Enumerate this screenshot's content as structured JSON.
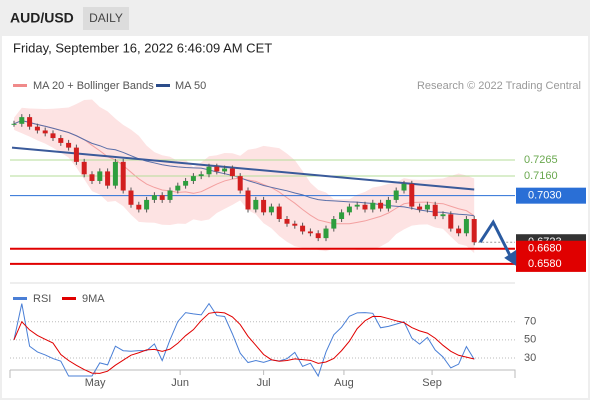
{
  "header": {
    "symbol": "AUD/USD",
    "period": "DAILY",
    "date": "Friday, September 16, 2022 6:46:09 AM CET"
  },
  "chart_data": {
    "type": "candlestick",
    "legend": [
      "MA 20 + Bollinger Bands",
      "MA 50"
    ],
    "copyright": "Research © 2022 Trading Central",
    "ylim": [
      0.6454,
      0.7661
    ],
    "closes": [
      0.7504,
      0.7548,
      0.7485,
      0.746,
      0.7441,
      0.741,
      0.7378,
      0.7347,
      0.7253,
      0.7171,
      0.7127,
      0.719,
      0.7096,
      0.7253,
      0.7064,
      0.697,
      0.6939,
      0.7002,
      0.7033,
      0.7002,
      0.7064,
      0.7096,
      0.7127,
      0.7159,
      0.7171,
      0.7221,
      0.719,
      0.7209,
      0.7159,
      0.7064,
      0.6939,
      0.7002,
      0.692,
      0.6958,
      0.6876,
      0.6845,
      0.6832,
      0.6794,
      0.6782,
      0.675,
      0.6813,
      0.6876,
      0.692,
      0.6958,
      0.697,
      0.6939,
      0.6983,
      0.6945,
      0.7002,
      0.7064,
      0.7108,
      0.6958,
      0.6939,
      0.697,
      0.6895,
      0.6907,
      0.6813,
      0.6782,
      0.6876,
      0.6723
    ],
    "trendline": [
      0.7347,
      0.7071
    ],
    "levels": [
      {
        "value": 0.7265,
        "label": "0.7265",
        "color": "#b5dc9a",
        "style": "text"
      },
      {
        "value": 0.716,
        "label": "0.7160",
        "color": "#b5dc9a",
        "style": "text"
      },
      {
        "value": 0.703,
        "label": "0.7030",
        "color": "#2a6fd6",
        "style": "box"
      },
      {
        "value": 0.6723,
        "label": "0.6723",
        "color": "#333333",
        "style": "current"
      },
      {
        "value": 0.668,
        "label": "0.6680",
        "color": "#e00000",
        "style": "box"
      },
      {
        "value": 0.658,
        "label": "0.6580",
        "color": "#e00000",
        "style": "box"
      }
    ],
    "xticks": [
      {
        "value": 10.4,
        "label": "May"
      },
      {
        "value": 21.3,
        "label": "Jun"
      },
      {
        "value": 32,
        "label": "Jul"
      },
      {
        "value": 42.3,
        "label": "Aug"
      },
      {
        "value": 53.6,
        "label": "Sep"
      }
    ],
    "rsi": {
      "legend": [
        "RSI",
        "9MA"
      ],
      "ylim": [
        20,
        94
      ],
      "yticks": [
        70,
        50,
        30
      ]
    }
  }
}
